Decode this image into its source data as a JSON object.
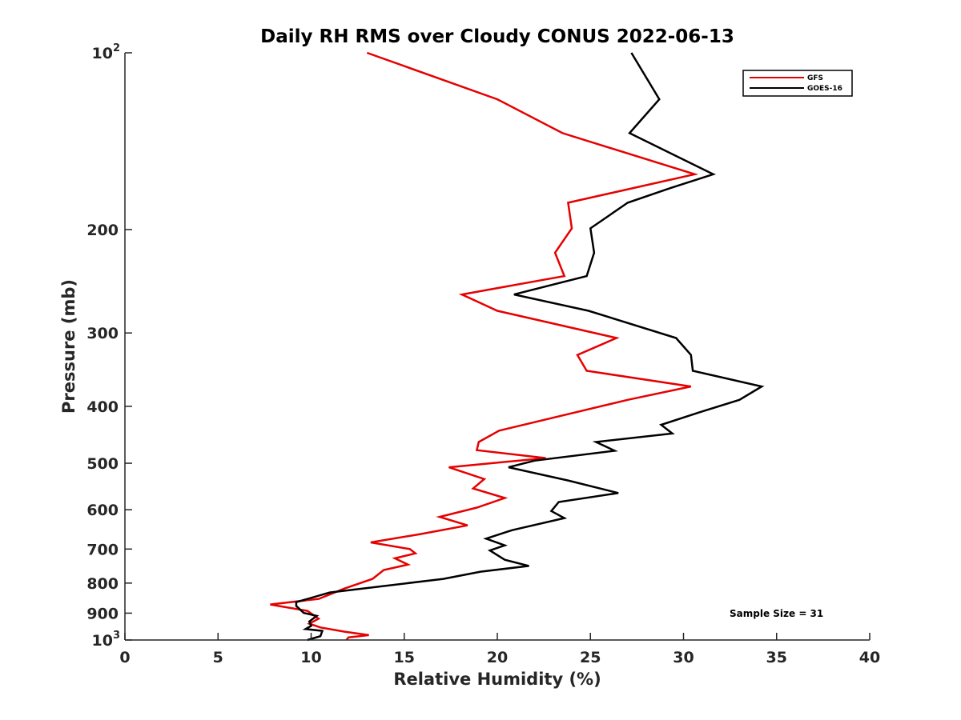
{
  "chart_data": {
    "type": "line",
    "title": "Daily RH RMS over Cloudy CONUS 2022-06-13",
    "xlabel": "Relative Humidity (%)",
    "ylabel": "Pressure (mb)",
    "xlim": [
      0,
      40
    ],
    "ylim": [
      100,
      1000
    ],
    "y_scale": "log",
    "y_reversed": true,
    "grid": false,
    "legend_position": "top-right",
    "x_ticks": [
      {
        "value": 0,
        "label": "0"
      },
      {
        "value": 5,
        "label": "5"
      },
      {
        "value": 10,
        "label": "10"
      },
      {
        "value": 15,
        "label": "15"
      },
      {
        "value": 20,
        "label": "20"
      },
      {
        "value": 25,
        "label": "25"
      },
      {
        "value": 30,
        "label": "30"
      },
      {
        "value": 35,
        "label": "35"
      },
      {
        "value": 40,
        "label": "40"
      }
    ],
    "y_ticks": [
      {
        "value": 100,
        "base": "10",
        "exp": "2"
      },
      {
        "value": 200,
        "label": "200"
      },
      {
        "value": 300,
        "label": "300"
      },
      {
        "value": 400,
        "label": "400"
      },
      {
        "value": 500,
        "label": "500"
      },
      {
        "value": 600,
        "label": "600"
      },
      {
        "value": 700,
        "label": "700"
      },
      {
        "value": 800,
        "label": "800"
      },
      {
        "value": 900,
        "label": "900"
      },
      {
        "value": 1000,
        "base": "10",
        "exp": "3"
      }
    ],
    "series": [
      {
        "name": "GFS",
        "color": "#e60000",
        "points": [
          [
            13.0,
            100
          ],
          [
            20.0,
            120
          ],
          [
            23.5,
            137
          ],
          [
            30.6,
            161
          ],
          [
            23.8,
            180
          ],
          [
            24.0,
            199
          ],
          [
            23.1,
            219
          ],
          [
            23.6,
            240
          ],
          [
            18.1,
            258
          ],
          [
            20.0,
            275
          ],
          [
            26.4,
            306
          ],
          [
            24.3,
            327
          ],
          [
            24.8,
            348
          ],
          [
            30.4,
            370
          ],
          [
            27.0,
            390
          ],
          [
            20.1,
            440
          ],
          [
            19.0,
            460
          ],
          [
            18.9,
            475
          ],
          [
            22.6,
            490
          ],
          [
            17.4,
            508
          ],
          [
            19.3,
            532
          ],
          [
            18.7,
            552
          ],
          [
            20.4,
            573
          ],
          [
            18.9,
            595
          ],
          [
            16.9,
            617
          ],
          [
            18.4,
            638
          ],
          [
            15.9,
            660
          ],
          [
            13.2,
            682
          ],
          [
            15.3,
            700
          ],
          [
            15.6,
            712
          ],
          [
            14.5,
            726
          ],
          [
            15.2,
            744
          ],
          [
            13.9,
            760
          ],
          [
            13.3,
            787
          ],
          [
            11.8,
            817
          ],
          [
            10.4,
            851
          ],
          [
            7.8,
            870
          ],
          [
            9.8,
            892
          ],
          [
            10.4,
            920
          ],
          [
            9.9,
            938
          ],
          [
            10.5,
            952
          ],
          [
            11.8,
            968
          ],
          [
            13.1,
            981
          ],
          [
            12.0,
            990
          ],
          [
            11.9,
            1000
          ]
        ]
      },
      {
        "name": "GOES-16",
        "color": "#000000",
        "points": [
          [
            27.2,
            100
          ],
          [
            28.7,
            120
          ],
          [
            27.1,
            137
          ],
          [
            31.6,
            161
          ],
          [
            29.3,
            170
          ],
          [
            27.0,
            180
          ],
          [
            25.0,
            199
          ],
          [
            25.2,
            219
          ],
          [
            24.8,
            240
          ],
          [
            20.9,
            258
          ],
          [
            24.9,
            275
          ],
          [
            29.6,
            306
          ],
          [
            30.4,
            327
          ],
          [
            30.5,
            348
          ],
          [
            34.2,
            370
          ],
          [
            33.0,
            390
          ],
          [
            30.8,
            410
          ],
          [
            28.8,
            430
          ],
          [
            29.4,
            445
          ],
          [
            25.3,
            460
          ],
          [
            26.3,
            476
          ],
          [
            22.0,
            495
          ],
          [
            20.6,
            508
          ],
          [
            23.8,
            535
          ],
          [
            26.5,
            562
          ],
          [
            23.3,
            582
          ],
          [
            22.9,
            603
          ],
          [
            23.6,
            620
          ],
          [
            20.8,
            650
          ],
          [
            19.4,
            672
          ],
          [
            20.4,
            690
          ],
          [
            19.6,
            704
          ],
          [
            20.4,
            730
          ],
          [
            21.7,
            748
          ],
          [
            19.1,
            765
          ],
          [
            17.1,
            787
          ],
          [
            11.0,
            830
          ],
          [
            9.2,
            862
          ],
          [
            9.2,
            875
          ],
          [
            9.6,
            899
          ],
          [
            10.3,
            910
          ],
          [
            9.9,
            930
          ],
          [
            10.0,
            946
          ],
          [
            9.7,
            958
          ],
          [
            10.6,
            965
          ],
          [
            10.5,
            985
          ],
          [
            9.8,
            1000
          ]
        ]
      }
    ],
    "annotation": "Sample Size = 31"
  }
}
